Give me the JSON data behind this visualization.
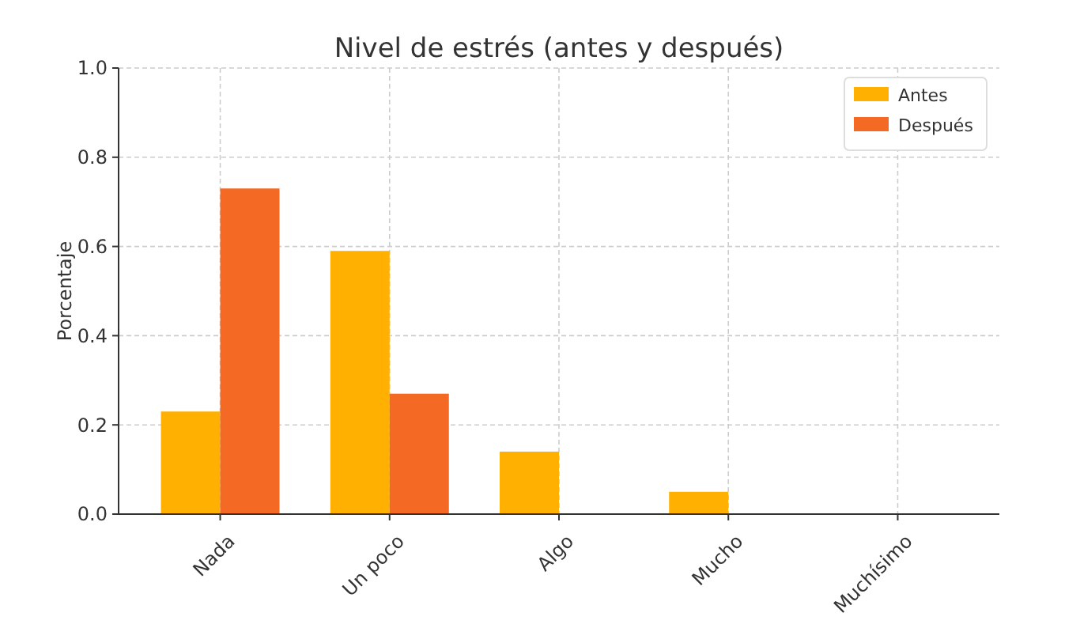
{
  "chart_data": {
    "type": "bar",
    "title": "Nivel de estrés (antes y después)",
    "ylabel": "Porcentaje",
    "categories": [
      "Nada",
      "Un poco",
      "Algo",
      "Mucho",
      "Muchísimo"
    ],
    "series": [
      {
        "name": "Antes",
        "color": "#ffb000",
        "values": [
          0.23,
          0.59,
          0.14,
          0.05,
          0
        ]
      },
      {
        "name": "Después",
        "color": "#f46a25",
        "values": [
          0.73,
          0.27,
          0,
          0,
          0
        ]
      }
    ],
    "ylim": [
      0,
      1
    ],
    "yticks": [
      {
        "value": 0,
        "label": "0.0"
      },
      {
        "value": 0.2,
        "label": "0.2"
      },
      {
        "value": 0.4,
        "label": "0.4"
      },
      {
        "value": 0.6,
        "label": "0.6"
      },
      {
        "value": 0.8,
        "label": "0.8"
      },
      {
        "value": 1,
        "label": "1.0"
      }
    ],
    "grid": true,
    "legend": "top right"
  }
}
